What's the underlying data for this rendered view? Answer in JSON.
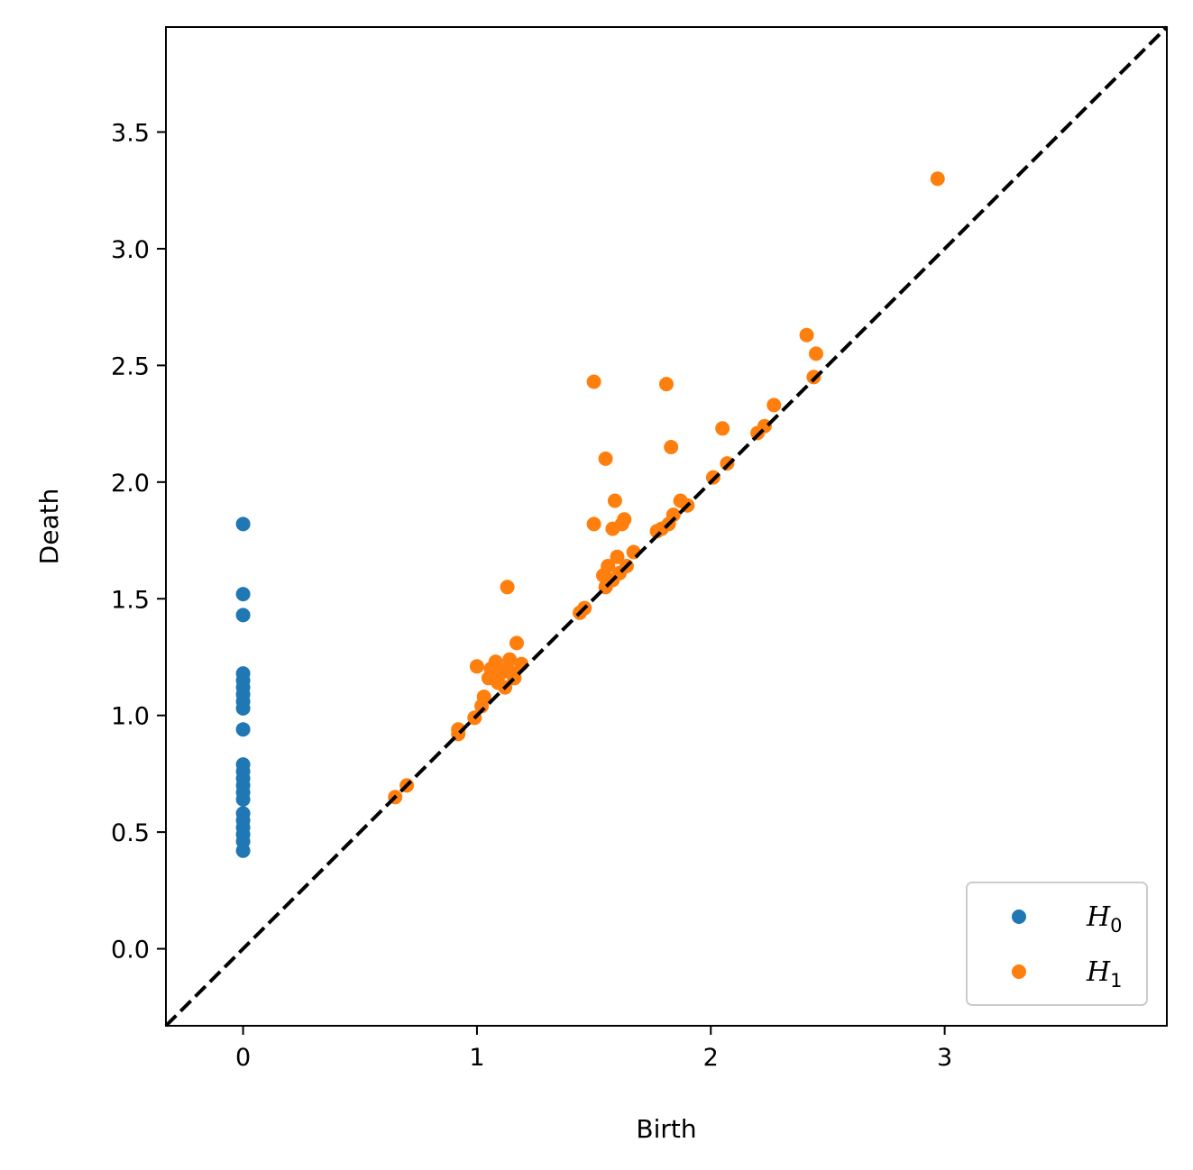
{
  "chart_data": {
    "type": "scatter",
    "title": "",
    "xlabel": "Birth",
    "ylabel": "Death",
    "xlim": [
      -0.33,
      3.95
    ],
    "ylim": [
      -0.33,
      3.95
    ],
    "xticks": [
      0,
      1,
      2,
      3
    ],
    "yticks": [
      0.0,
      0.5,
      1.0,
      1.5,
      2.0,
      2.5,
      3.0,
      3.5
    ],
    "xtick_labels": [
      "0",
      "1",
      "2",
      "3"
    ],
    "ytick_labels": [
      "0.0",
      "0.5",
      "1.0",
      "1.5",
      "2.0",
      "2.5",
      "3.0",
      "3.5"
    ],
    "diagonal": true,
    "grid": false,
    "legend": "lower-right",
    "series": [
      {
        "name": "H",
        "subscript": "0",
        "color": "#1f77b4",
        "points": [
          [
            0,
            1.82
          ],
          [
            0,
            1.52
          ],
          [
            0,
            1.43
          ],
          [
            0,
            1.18
          ],
          [
            0,
            1.15
          ],
          [
            0,
            1.12
          ],
          [
            0,
            1.09
          ],
          [
            0,
            1.06
          ],
          [
            0,
            1.03
          ],
          [
            0,
            0.94
          ],
          [
            0,
            0.79
          ],
          [
            0,
            0.76
          ],
          [
            0,
            0.73
          ],
          [
            0,
            0.7
          ],
          [
            0,
            0.67
          ],
          [
            0,
            0.64
          ],
          [
            0,
            0.58
          ],
          [
            0,
            0.55
          ],
          [
            0,
            0.52
          ],
          [
            0,
            0.49
          ],
          [
            0,
            0.46
          ],
          [
            0,
            0.42
          ]
        ]
      },
      {
        "name": "H",
        "subscript": "1",
        "color": "#ff7f0e",
        "points": [
          [
            0.65,
            0.65
          ],
          [
            0.7,
            0.7
          ],
          [
            0.92,
            0.92
          ],
          [
            0.92,
            0.94
          ],
          [
            0.99,
            0.99
          ],
          [
            1.02,
            1.04
          ],
          [
            1.03,
            1.08
          ],
          [
            1.0,
            1.21
          ],
          [
            1.05,
            1.16
          ],
          [
            1.06,
            1.2
          ],
          [
            1.08,
            1.23
          ],
          [
            1.09,
            1.14
          ],
          [
            1.1,
            1.18
          ],
          [
            1.12,
            1.12
          ],
          [
            1.13,
            1.2
          ],
          [
            1.14,
            1.24
          ],
          [
            1.15,
            1.18
          ],
          [
            1.16,
            1.16
          ],
          [
            1.19,
            1.22
          ],
          [
            1.17,
            1.31
          ],
          [
            1.13,
            1.55
          ],
          [
            1.44,
            1.44
          ],
          [
            1.46,
            1.46
          ],
          [
            1.5,
            1.82
          ],
          [
            1.5,
            2.43
          ],
          [
            1.54,
            1.6
          ],
          [
            1.55,
            1.55
          ],
          [
            1.55,
            2.1
          ],
          [
            1.56,
            1.64
          ],
          [
            1.58,
            1.58
          ],
          [
            1.58,
            1.8
          ],
          [
            1.59,
            1.92
          ],
          [
            1.6,
            1.68
          ],
          [
            1.61,
            1.61
          ],
          [
            1.62,
            1.82
          ],
          [
            1.63,
            1.84
          ],
          [
            1.64,
            1.64
          ],
          [
            1.67,
            1.7
          ],
          [
            1.77,
            1.79
          ],
          [
            1.79,
            1.8
          ],
          [
            1.81,
            2.42
          ],
          [
            1.82,
            1.82
          ],
          [
            1.83,
            2.15
          ],
          [
            1.84,
            1.86
          ],
          [
            1.87,
            1.92
          ],
          [
            1.9,
            1.9
          ],
          [
            2.01,
            2.02
          ],
          [
            2.05,
            2.23
          ],
          [
            2.07,
            2.08
          ],
          [
            2.2,
            2.21
          ],
          [
            2.23,
            2.24
          ],
          [
            2.27,
            2.33
          ],
          [
            2.41,
            2.63
          ],
          [
            2.44,
            2.45
          ],
          [
            2.45,
            2.55
          ],
          [
            2.97,
            3.3
          ]
        ]
      }
    ]
  }
}
